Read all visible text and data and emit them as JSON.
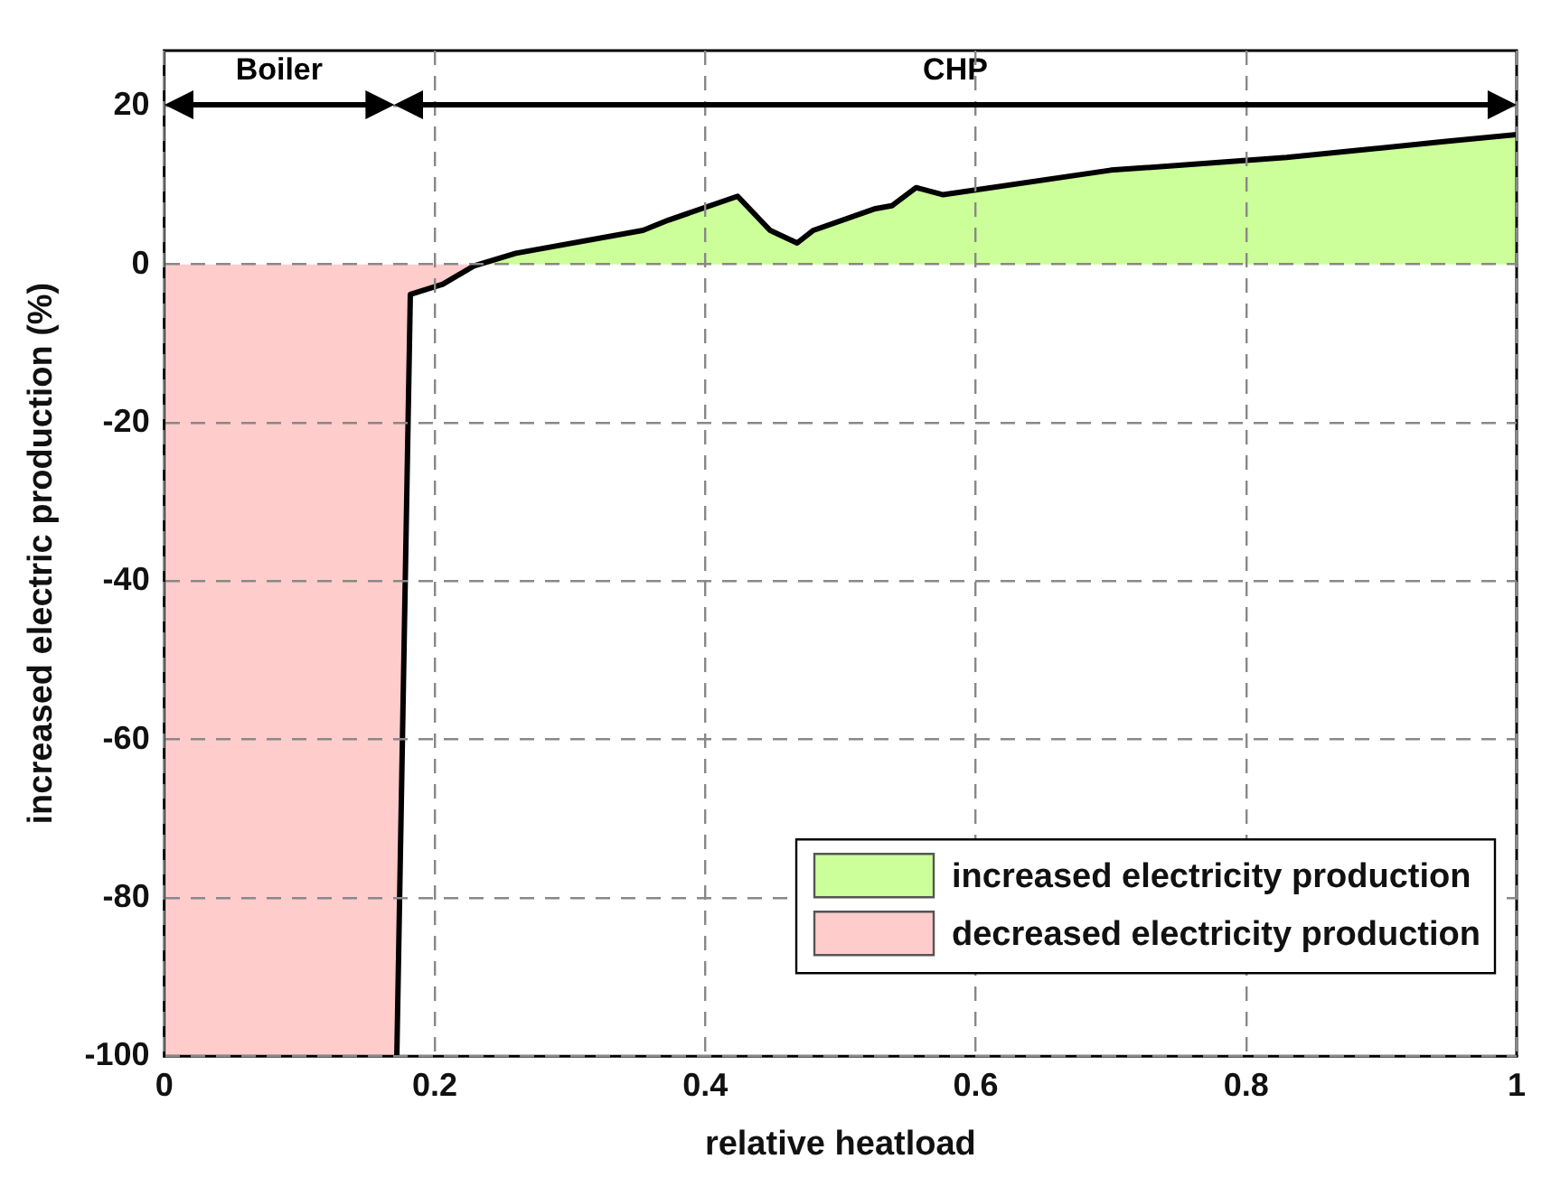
{
  "chart_data": {
    "type": "line",
    "xlabel": "relative heatload",
    "ylabel": "increased electric production (%)",
    "xlim": [
      0,
      1
    ],
    "ylim": [
      -100,
      27
    ],
    "xticks": [
      0,
      0.2,
      0.4,
      0.6,
      0.8,
      1
    ],
    "yticks": [
      -100,
      -80,
      -60,
      -40,
      -20,
      0,
      20
    ],
    "grid": true,
    "legend": "bottom right",
    "marker": "none",
    "line_style": "solid",
    "annotations": [
      "Boiler",
      "CHP"
    ],
    "series": [
      {
        "name": "increased electricity production",
        "type": "area",
        "color": "#ccff99",
        "x": [
          0.233,
          0.26,
          0.354,
          0.373,
          0.424,
          0.448,
          0.468,
          0.48,
          0.525,
          0.538,
          0.556,
          0.576,
          0.7,
          0.83,
          0.946,
          1
        ],
        "values": [
          0,
          1.4,
          4.3,
          5.6,
          8.6,
          4.3,
          2.7,
          4.3,
          7,
          7.4,
          9.7,
          8.8,
          11.9,
          13.5,
          15.5,
          16.4
        ]
      },
      {
        "name": "decreased electricity production",
        "type": "area",
        "color": "#ffcccc",
        "x": [
          0,
          0.172,
          0.182,
          0.206,
          0.229,
          0.233
        ],
        "values": [
          -100,
          -100,
          -3.8,
          -2.5,
          -0.2,
          0
        ]
      },
      {
        "type": "line",
        "color": "#000000",
        "x": [
          0.172,
          0.182,
          0.206,
          0.229,
          0.26,
          0.354,
          0.373,
          0.424,
          0.448,
          0.468,
          0.48,
          0.525,
          0.538,
          0.556,
          0.576,
          0.7,
          0.83,
          0.946,
          1
        ],
        "values": [
          -100,
          -3.8,
          -2.5,
          -0.2,
          1.4,
          4.3,
          5.6,
          8.6,
          4.3,
          2.7,
          4.3,
          7,
          7.4,
          9.7,
          8.8,
          11.9,
          13.5,
          15.5,
          16.4
        ]
      }
    ]
  }
}
